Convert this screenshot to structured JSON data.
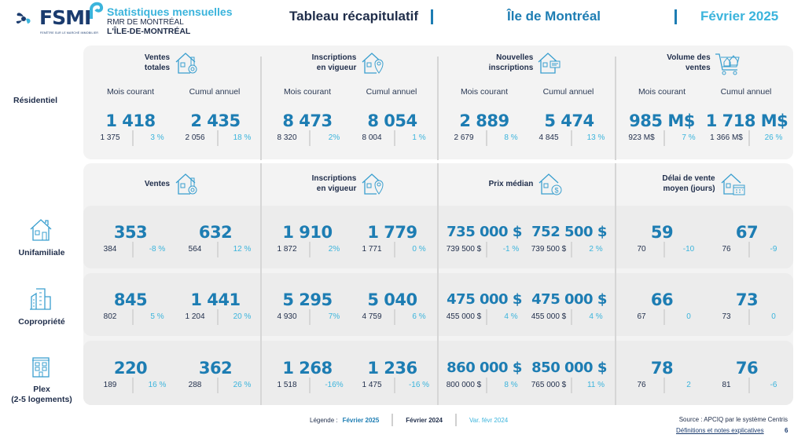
{
  "header": {
    "logo_text": "FSMI",
    "logo_tagline": "FENÊTRE SUR LE MARCHÉ IMMOBILIER",
    "brand_title": "Statistiques mensuelles",
    "brand_subtitle": "RMR DE MONTRÉAL",
    "brand_region": "L'ÎLE-DE-MONTRÉAL",
    "report_title": "Tableau récapitulatif",
    "area": "Île de Montréal",
    "period": "Février 2025",
    "colors": {
      "dark": "#1f2d4a",
      "accent": "#1d7db3",
      "light_accent": "#3bb4dc"
    }
  },
  "residential": {
    "row_label": "Résidentiel",
    "groups": [
      {
        "title_line1": "Ventes",
        "title_line2": "totales",
        "icon": "house-key-icon",
        "col_current": "Mois courant",
        "col_ytd": "Cumul annuel",
        "current": {
          "value": "1 418",
          "previous": "1 375",
          "variation": "3 %"
        },
        "ytd": {
          "value": "2 435",
          "previous": "2 056",
          "variation": "18 %"
        }
      },
      {
        "title_line1": "Inscriptions",
        "title_line2": "en vigueur",
        "icon": "house-pin-icon",
        "col_current": "Mois courant",
        "col_ytd": "Cumul annuel",
        "current": {
          "value": "8 473",
          "previous": "8 320",
          "variation": "2%"
        },
        "ytd": {
          "value": "8 054",
          "previous": "8 004",
          "variation": "1 %"
        }
      },
      {
        "title_line1": "Nouvelles",
        "title_line2": "inscriptions",
        "icon": "house-sign-icon",
        "col_current": "Mois courant",
        "col_ytd": "Cumul annuel",
        "current": {
          "value": "2 889",
          "previous": "2 679",
          "variation": "8 %"
        },
        "ytd": {
          "value": "5 474",
          "previous": "4 845",
          "variation": "13 %"
        }
      },
      {
        "title_line1": "Volume des",
        "title_line2": "ventes",
        "icon": "cart-houses-icon",
        "col_current": "Mois courant",
        "col_ytd": "Cumul annuel",
        "current": {
          "value": "985 M$",
          "previous": "923 M$",
          "variation": "7 %"
        },
        "ytd": {
          "value": "1 718 M$",
          "previous": "1 366 M$",
          "variation": "26 %"
        }
      }
    ]
  },
  "by_type": {
    "groups": [
      {
        "title_line1": "Ventes",
        "title_line2": "",
        "icon": "house-key-icon"
      },
      {
        "title_line1": "Inscriptions",
        "title_line2": "en vigueur",
        "icon": "house-pin-icon"
      },
      {
        "title_line1": "Prix médian",
        "title_line2": "",
        "icon": "house-dollar-icon"
      },
      {
        "title_line1": "Délai de vente",
        "title_line2": "moyen (jours)",
        "icon": "house-calendar-icon"
      }
    ],
    "rows": [
      {
        "label_line1": "Unifamiliale",
        "label_line2": "",
        "icon": "single-family-house-icon",
        "cells": [
          {
            "value": "353",
            "previous": "384",
            "variation": "-8 %"
          },
          {
            "value": "632",
            "previous": "564",
            "variation": "12 %"
          },
          {
            "value": "1 910",
            "previous": "1 872",
            "variation": "2%"
          },
          {
            "value": "1 779",
            "previous": "1 771",
            "variation": "0 %"
          },
          {
            "value": "735 000 $",
            "previous": "739 500 $",
            "variation": "-1 %"
          },
          {
            "value": "752 500 $",
            "previous": "739 500 $",
            "variation": "2 %"
          },
          {
            "value": "59",
            "previous": "70",
            "variation": "-10"
          },
          {
            "value": "67",
            "previous": "76",
            "variation": "-9"
          }
        ]
      },
      {
        "label_line1": "Copropriété",
        "label_line2": "",
        "icon": "condo-building-icon",
        "cells": [
          {
            "value": "845",
            "previous": "802",
            "variation": "5 %"
          },
          {
            "value": "1 441",
            "previous": "1 204",
            "variation": "20 %"
          },
          {
            "value": "5 295",
            "previous": "4 930",
            "variation": "7%"
          },
          {
            "value": "5 040",
            "previous": "4 759",
            "variation": "6 %"
          },
          {
            "value": "475 000 $",
            "previous": "455 000 $",
            "variation": "4 %"
          },
          {
            "value": "475 000 $",
            "previous": "455 000 $",
            "variation": "4 %"
          },
          {
            "value": "66",
            "previous": "67",
            "variation": "0"
          },
          {
            "value": "73",
            "previous": "73",
            "variation": "0"
          }
        ]
      },
      {
        "label_line1": "Plex",
        "label_line2": "(2-5 logements)",
        "icon": "plex-building-icon",
        "cells": [
          {
            "value": "220",
            "previous": "189",
            "variation": "16 %"
          },
          {
            "value": "362",
            "previous": "288",
            "variation": "26 %"
          },
          {
            "value": "1 268",
            "previous": "1 518",
            "variation": "-16%"
          },
          {
            "value": "1 236",
            "previous": "1 475",
            "variation": "-16 %"
          },
          {
            "value": "860 000 $",
            "previous": "800 000 $",
            "variation": "8 %"
          },
          {
            "value": "850 000 $",
            "previous": "765 000 $",
            "variation": "11 %"
          },
          {
            "value": "78",
            "previous": "76",
            "variation": "2"
          },
          {
            "value": "76",
            "previous": "81",
            "variation": "-6"
          }
        ]
      }
    ]
  },
  "footer": {
    "legend_label": "Légende :",
    "legend_current": "Février 2025",
    "legend_previous": "Février 2024",
    "legend_variation": "Var. févr 2024",
    "source": "Source : APCIQ par le système Centris",
    "definitions_link": "Définitions et notes explicatives",
    "page_number": "6"
  }
}
